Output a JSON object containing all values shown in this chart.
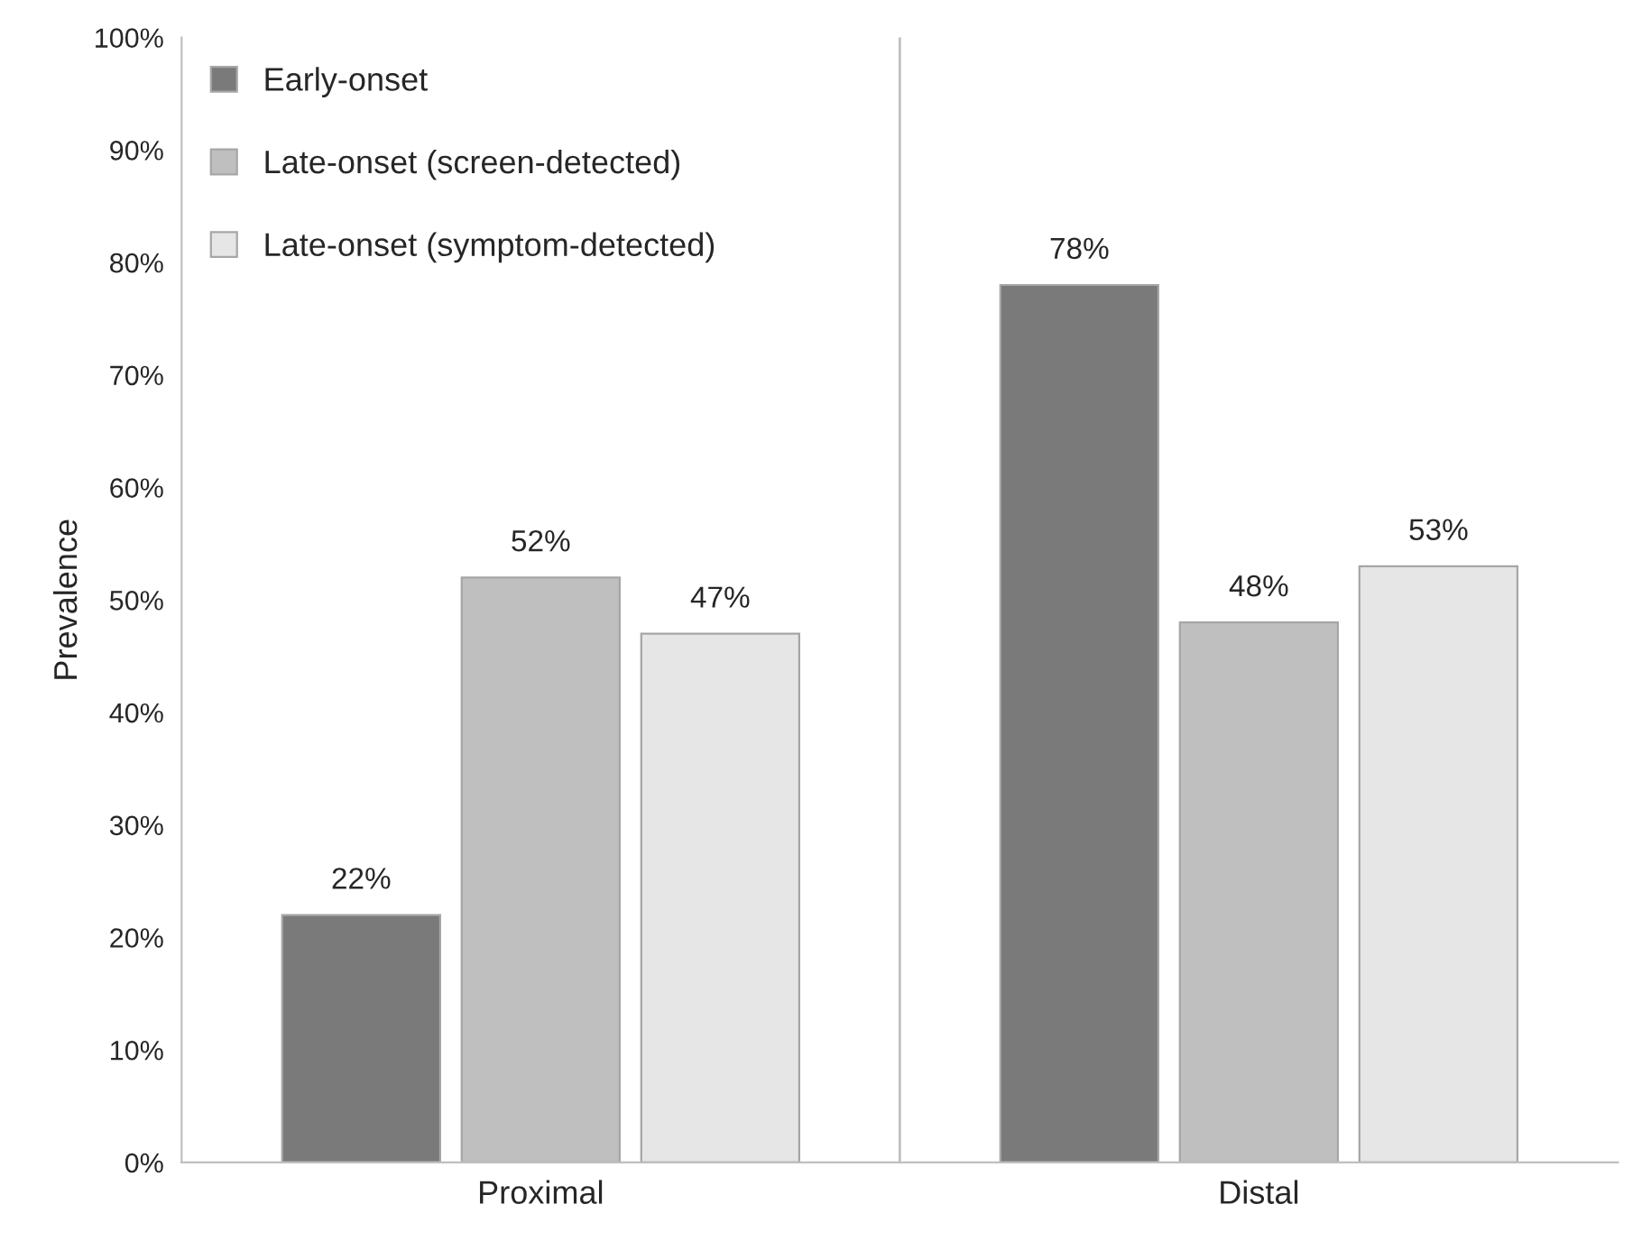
{
  "chart_data": {
    "type": "bar",
    "ylabel": "Prevalence",
    "categories": [
      "Proximal",
      "Distal"
    ],
    "series": [
      {
        "name": "Early-onset",
        "color": "#7a7a7a",
        "values": [
          22,
          78
        ],
        "value_labels": [
          "22%",
          "78%"
        ]
      },
      {
        "name": "Late-onset (screen-detected)",
        "color": "#bfbfbf",
        "values": [
          52,
          48
        ],
        "value_labels": [
          "52%",
          "48%"
        ]
      },
      {
        "name": "Late-onset (symptom-detected)",
        "color": "#e6e6e6",
        "values": [
          47,
          53
        ],
        "value_labels": [
          "47%",
          "53%"
        ]
      }
    ],
    "ylim": [
      0,
      100
    ],
    "yticks": [
      {
        "value": 0,
        "label": "0%"
      },
      {
        "value": 10,
        "label": "10%"
      },
      {
        "value": 20,
        "label": "20%"
      },
      {
        "value": 30,
        "label": "30%"
      },
      {
        "value": 40,
        "label": "40%"
      },
      {
        "value": 50,
        "label": "50%"
      },
      {
        "value": 60,
        "label": "60%"
      },
      {
        "value": 70,
        "label": "70%"
      },
      {
        "value": 80,
        "label": "80%"
      },
      {
        "value": 90,
        "label": "90%"
      },
      {
        "value": 100,
        "label": "100%"
      }
    ],
    "grid": "x",
    "legend": "top left"
  }
}
